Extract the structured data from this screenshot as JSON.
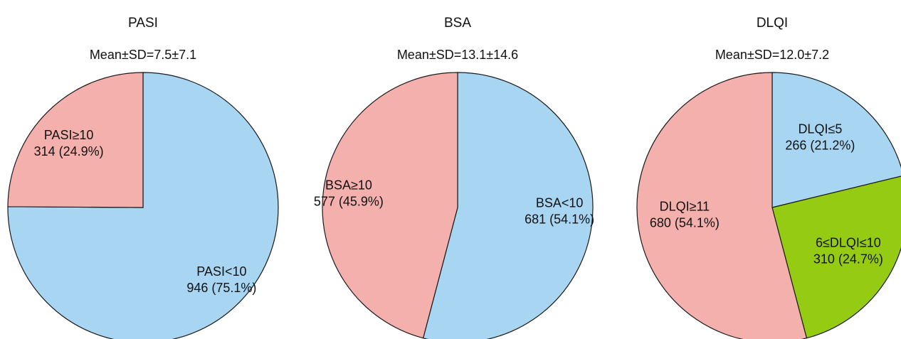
{
  "chart_data": [
    {
      "type": "pie",
      "title": "PASI",
      "subtitle": "Mean±SD=7.5±7.1",
      "slices": [
        {
          "label": "PASI<10",
          "value": 946,
          "percent": 75.1,
          "display": "946 (75.1%)",
          "color": "#a8d6f2"
        },
        {
          "label": "PASI≥10",
          "value": 314,
          "percent": 24.9,
          "display": "314 (24.9%)",
          "color": "#f4b0ac"
        }
      ]
    },
    {
      "type": "pie",
      "title": "BSA",
      "subtitle": "Mean±SD=13.1±14.6",
      "slices": [
        {
          "label": "BSA<10",
          "value": 681,
          "percent": 54.1,
          "display": "681 (54.1%)",
          "color": "#a8d6f2"
        },
        {
          "label": "BSA≥10",
          "value": 577,
          "percent": 45.9,
          "display": "577 (45.9%)",
          "color": "#f4b0ac"
        }
      ]
    },
    {
      "type": "pie",
      "title": "DLQI",
      "subtitle": "Mean±SD=12.0±7.2",
      "slices": [
        {
          "label": "DLQI≤5",
          "value": 266,
          "percent": 21.2,
          "display": "266 (21.2%)",
          "color": "#a8d6f2"
        },
        {
          "label": "6≤DLQI≤10",
          "value": 310,
          "percent": 24.7,
          "display": "310 (24.7%)",
          "color": "#96cb14"
        },
        {
          "label": "DLQI≥11",
          "value": 680,
          "percent": 54.1,
          "display": "680 (54.1%)",
          "color": "#f4b0ac"
        }
      ]
    }
  ]
}
